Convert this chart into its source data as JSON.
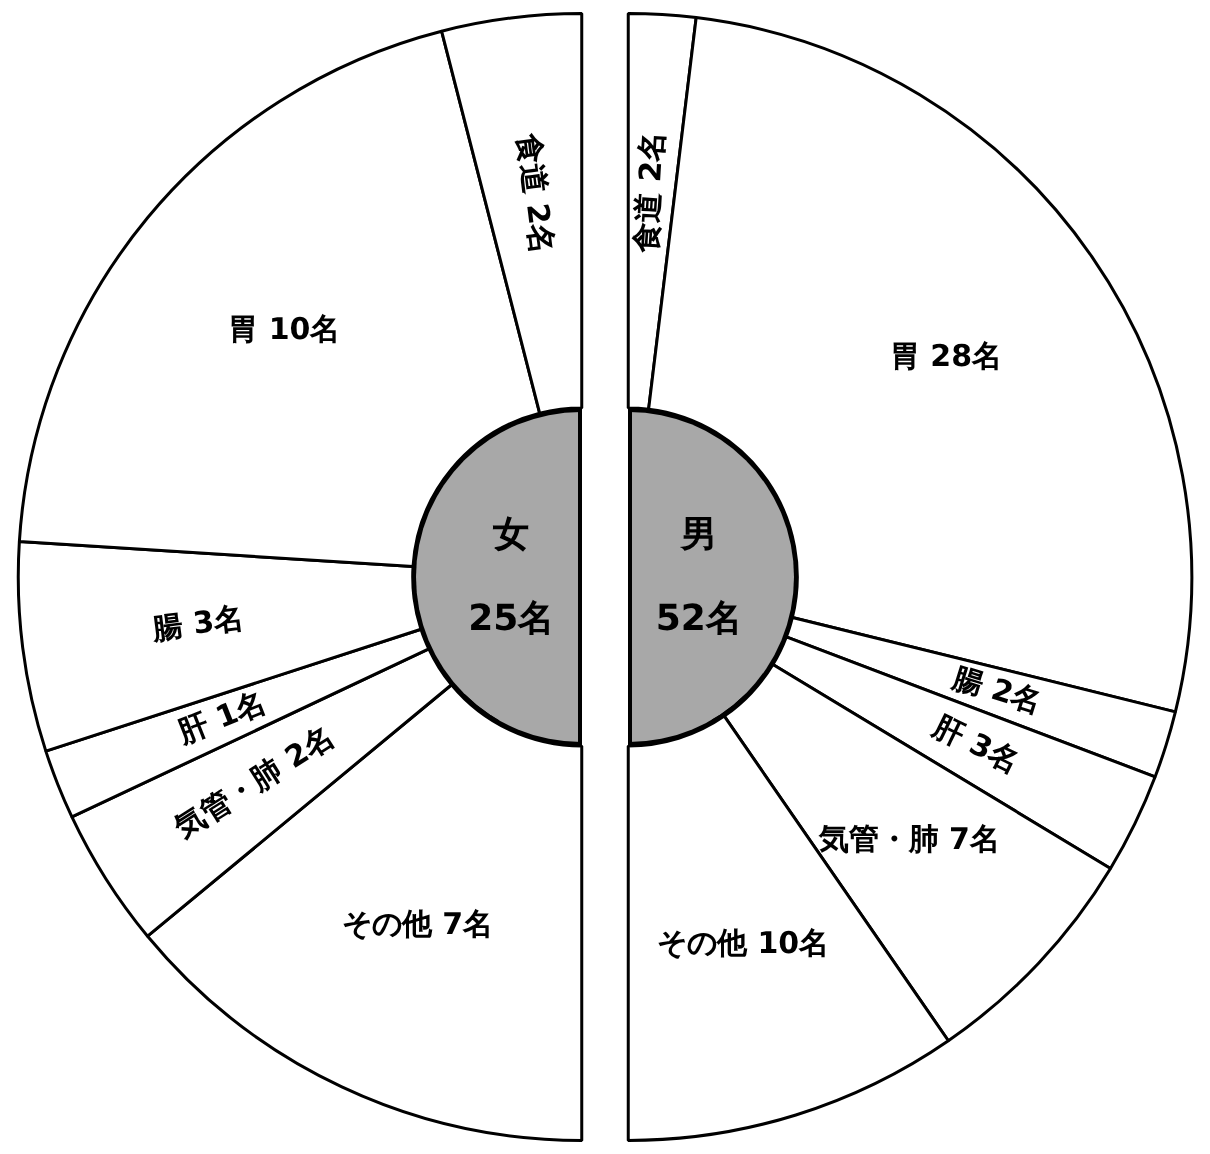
{
  "chart_data": [
    {
      "type": "donut",
      "title": "女",
      "subtitle": "25名",
      "categories": [
        "その他",
        "気管・肺",
        "肝",
        "腸",
        "胃",
        "食道"
      ],
      "values": [
        7,
        2,
        1,
        3,
        10,
        2
      ],
      "colors": [
        "#ffffff",
        "#ffffff",
        "#ffffff",
        "#ffffff",
        "#ffffff",
        "#ffffff"
      ],
      "value_labels": [
        "7名",
        "2名",
        "1名",
        "3名",
        "10名",
        "2名"
      ]
    },
    {
      "type": "donut",
      "title": "男",
      "subtitle": "52名",
      "categories": [
        "食道",
        "胃",
        "腸",
        "肝",
        "気管・肺",
        "その他"
      ],
      "values": [
        2,
        28,
        2,
        3,
        7,
        10
      ],
      "colors": [
        "#ffffff",
        "#ffffff",
        "#ffffff",
        "#ffffff",
        "#ffffff",
        "#ffffff"
      ],
      "value_labels": [
        "2名",
        "28名",
        "2名",
        "3名",
        "7名",
        "10名"
      ]
    }
  ]
}
